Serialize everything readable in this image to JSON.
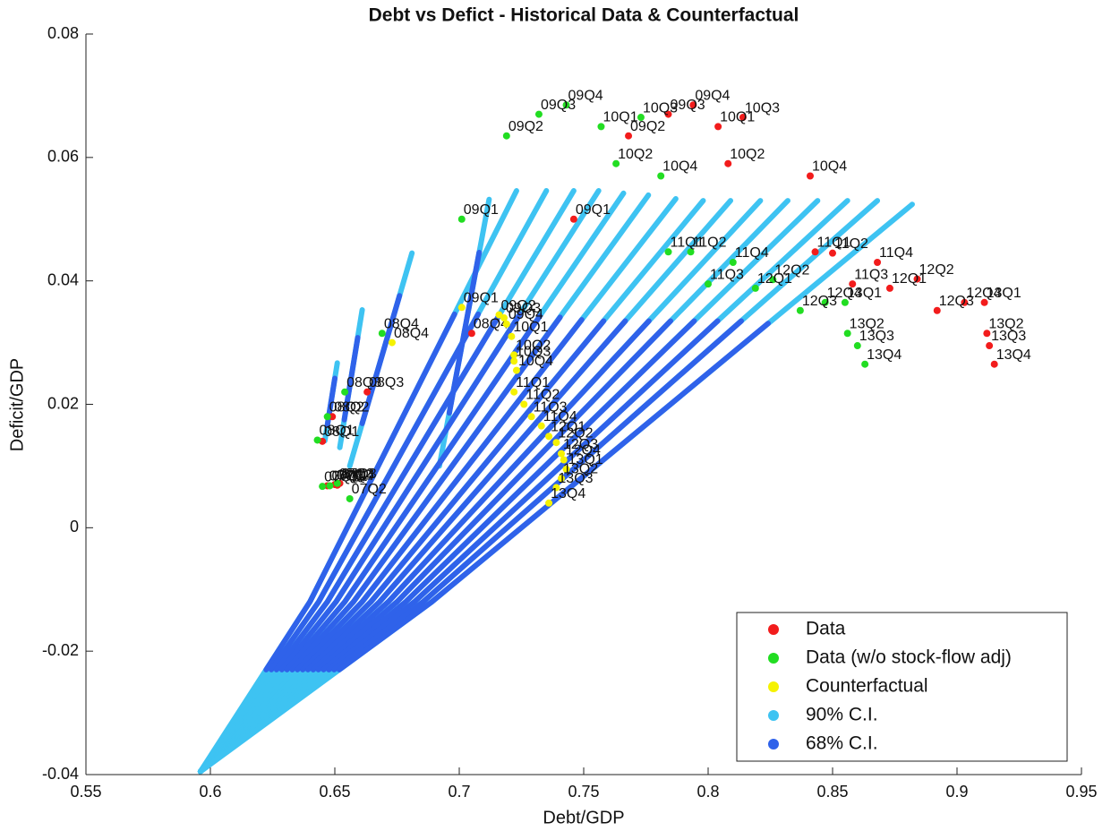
{
  "chart_data": {
    "type": "scatter",
    "title": "Debt vs Defict - Historical Data & Counterfactual",
    "xlabel": "Debt/GDP",
    "ylabel": "Deficit/GDP",
    "xlim": [
      0.55,
      0.95
    ],
    "xticks": [
      0.55,
      0.6,
      0.65,
      0.7,
      0.75,
      0.8,
      0.85,
      0.9,
      0.95
    ],
    "ylim": [
      -0.04,
      0.08
    ],
    "yticks": [
      -0.04,
      -0.02,
      0,
      0.02,
      0.04,
      0.06,
      0.08
    ],
    "legend": "lower right",
    "series": [
      {
        "name": "Data",
        "color": "#f21c1c",
        "style": "marker",
        "labels": [
          "07Q1",
          "07Q2",
          "07Q3",
          "07Q4",
          "08Q1",
          "08Q2",
          "08Q3",
          "08Q4",
          "09Q1",
          "09Q2",
          "09Q3",
          "09Q4",
          "10Q1",
          "10Q2",
          "10Q3",
          "10Q4",
          "11Q1",
          "11Q2",
          "11Q3",
          "11Q4",
          "12Q1",
          "12Q2",
          "12Q3",
          "12Q4",
          "13Q1",
          "13Q2",
          "13Q3",
          "13Q4"
        ],
        "x": [
          0.647,
          0.65,
          0.652,
          0.651,
          0.645,
          0.649,
          0.663,
          0.705,
          0.746,
          0.768,
          0.784,
          0.794,
          0.804,
          0.808,
          0.814,
          0.841,
          0.843,
          0.85,
          0.858,
          0.868,
          0.873,
          0.884,
          0.892,
          0.903,
          0.911,
          0.912,
          0.913,
          0.915
        ],
        "y": [
          0.0068,
          0.007,
          0.0072,
          0.0069,
          0.014,
          0.018,
          0.022,
          0.0315,
          0.05,
          0.0635,
          0.067,
          0.0685,
          0.065,
          0.059,
          0.0665,
          0.057,
          0.0447,
          0.0445,
          0.0395,
          0.043,
          0.0388,
          0.0403,
          0.0352,
          0.0365,
          0.0365,
          0.0315,
          0.0295,
          0.0265
        ]
      },
      {
        "name": "Data (w/o stock-flow adj)",
        "color": "#22dd22",
        "style": "marker",
        "labels": [
          "07Q1",
          "07Q2",
          "07Q3",
          "07Q4",
          "08Q1",
          "08Q2",
          "08Q3",
          "08Q4",
          "09Q1",
          "09Q2",
          "09Q3",
          "09Q4",
          "10Q1",
          "10Q2",
          "10Q3",
          "10Q4",
          "11Q1",
          "11Q2",
          "11Q3",
          "11Q4",
          "12Q1",
          "12Q2",
          "12Q3",
          "12Q4",
          "13Q1",
          "13Q2",
          "13Q3",
          "13Q4"
        ],
        "x": [
          0.645,
          0.656,
          0.651,
          0.648,
          0.643,
          0.647,
          0.654,
          0.669,
          0.701,
          0.719,
          0.732,
          0.743,
          0.757,
          0.763,
          0.773,
          0.781,
          0.784,
          0.793,
          0.8,
          0.81,
          0.819,
          0.826,
          0.837,
          0.847,
          0.855,
          0.856,
          0.86,
          0.863
        ],
        "y": [
          0.0067,
          0.0047,
          0.0072,
          0.0068,
          0.0142,
          0.018,
          0.022,
          0.0315,
          0.05,
          0.0635,
          0.067,
          0.0685,
          0.065,
          0.059,
          0.0665,
          0.057,
          0.0447,
          0.0447,
          0.0395,
          0.043,
          0.0388,
          0.0402,
          0.0352,
          0.0365,
          0.0365,
          0.0315,
          0.0295,
          0.0265
        ]
      },
      {
        "name": "Counterfactual",
        "color": "#f5f200",
        "style": "marker",
        "labels": [
          "08Q4",
          "09Q1",
          "09Q2",
          "09Q3",
          "09Q4",
          "10Q1",
          "10Q2",
          "10Q3",
          "10Q4",
          "11Q1",
          "11Q2",
          "11Q3",
          "11Q4",
          "12Q1",
          "12Q2",
          "12Q3",
          "12Q4",
          "13Q1",
          "13Q2",
          "13Q3",
          "13Q4"
        ],
        "x": [
          0.673,
          0.701,
          0.716,
          0.718,
          0.719,
          0.721,
          0.722,
          0.722,
          0.723,
          0.722,
          0.726,
          0.729,
          0.733,
          0.736,
          0.739,
          0.741,
          0.742,
          0.743,
          0.741,
          0.739,
          0.736
        ],
        "y": [
          0.03,
          0.0357,
          0.0345,
          0.034,
          0.033,
          0.031,
          0.028,
          0.027,
          0.0255,
          0.022,
          0.02,
          0.018,
          0.0165,
          0.0148,
          0.0138,
          0.012,
          0.011,
          0.0095,
          0.008,
          0.0065,
          0.004
        ]
      },
      {
        "name": "90% C.I.",
        "color": "#3ec3f2",
        "style": "line",
        "x": [
          0.646,
          0.651,
          null,
          0.652,
          0.661,
          null,
          0.656,
          0.681,
          null,
          0.692,
          0.712,
          null,
          0.596,
          0.64,
          0.723,
          null,
          0.596,
          0.6435,
          0.735,
          null,
          0.596,
          0.647,
          0.746,
          null,
          0.596,
          0.6505,
          0.756,
          null,
          0.596,
          0.654,
          0.766,
          null,
          0.596,
          0.6575,
          0.776,
          null,
          0.596,
          0.661,
          0.787,
          null,
          0.596,
          0.6645,
          0.798,
          null,
          0.596,
          0.668,
          0.809,
          null,
          0.596,
          0.6715,
          0.821,
          null,
          0.596,
          0.675,
          0.832,
          null,
          0.596,
          0.6785,
          0.844,
          null,
          0.596,
          0.682,
          0.856,
          null,
          0.596,
          0.6855,
          0.868,
          null,
          0.596,
          0.689,
          0.882
        ],
        "y": [
          0.0141,
          0.0267,
          null,
          0.013,
          0.0353,
          null,
          0.01,
          0.0445,
          null,
          0.01,
          0.0532,
          null,
          -0.0395,
          -0.012,
          0.0546,
          null,
          -0.0395,
          -0.012,
          0.0546,
          null,
          -0.0395,
          -0.012,
          0.0546,
          null,
          -0.0395,
          -0.012,
          0.0546,
          null,
          -0.0395,
          -0.012,
          0.0542,
          null,
          -0.0395,
          -0.012,
          0.0539,
          null,
          -0.0395,
          -0.012,
          0.0533,
          null,
          -0.0395,
          -0.012,
          0.053,
          null,
          -0.0395,
          -0.012,
          0.053,
          null,
          -0.0395,
          -0.012,
          0.053,
          null,
          -0.0395,
          -0.012,
          0.053,
          null,
          -0.0395,
          -0.012,
          0.053,
          null,
          -0.0395,
          -0.012,
          0.053,
          null,
          -0.0395,
          -0.012,
          0.053,
          null,
          -0.0395,
          -0.012,
          0.0524
        ]
      },
      {
        "name": "68% C.I.",
        "color": "#2f62ea",
        "style": "line",
        "x": [
          0.647,
          0.65,
          null,
          0.6538,
          0.6592,
          null,
          0.661,
          0.676,
          null,
          0.696,
          0.708,
          null,
          0.6224,
          0.64,
          0.6981,
          null,
          0.6245,
          0.6435,
          0.7076,
          null,
          0.6266,
          0.647,
          0.7163,
          null,
          0.6287,
          0.6505,
          0.7244,
          null,
          0.6308,
          0.654,
          0.7324,
          null,
          0.6329,
          0.6575,
          0.7405,
          null,
          0.635,
          0.661,
          0.7492,
          null,
          0.6371,
          0.6645,
          0.758,
          null,
          0.6392,
          0.668,
          0.7667,
          null,
          0.6413,
          0.6715,
          0.7762,
          null,
          0.6434,
          0.675,
          0.7849,
          null,
          0.6455,
          0.6785,
          0.7944,
          null,
          0.6476,
          0.682,
          0.8038,
          null,
          0.6497,
          0.6855,
          0.8133,
          null,
          0.6518,
          0.689,
          0.8241
        ],
        "y": [
          0.0166,
          0.0242,
          null,
          0.0175,
          0.0308,
          null,
          0.0169,
          0.0376,
          null,
          0.0186,
          0.0446,
          null,
          -0.023,
          -0.012,
          0.0346,
          null,
          -0.023,
          -0.012,
          0.0346,
          null,
          -0.023,
          -0.012,
          0.0346,
          null,
          -0.023,
          -0.012,
          0.0346,
          null,
          -0.023,
          -0.012,
          0.0343,
          null,
          -0.023,
          -0.012,
          0.0341,
          null,
          -0.023,
          -0.012,
          0.0337,
          null,
          -0.023,
          -0.012,
          0.0335,
          null,
          -0.023,
          -0.012,
          0.0335,
          null,
          -0.023,
          -0.012,
          0.0335,
          null,
          -0.023,
          -0.012,
          0.0335,
          null,
          -0.023,
          -0.012,
          0.0335,
          null,
          -0.023,
          -0.012,
          0.0335,
          null,
          -0.023,
          -0.012,
          0.0335,
          null,
          -0.023,
          -0.012,
          0.0331
        ]
      }
    ]
  }
}
